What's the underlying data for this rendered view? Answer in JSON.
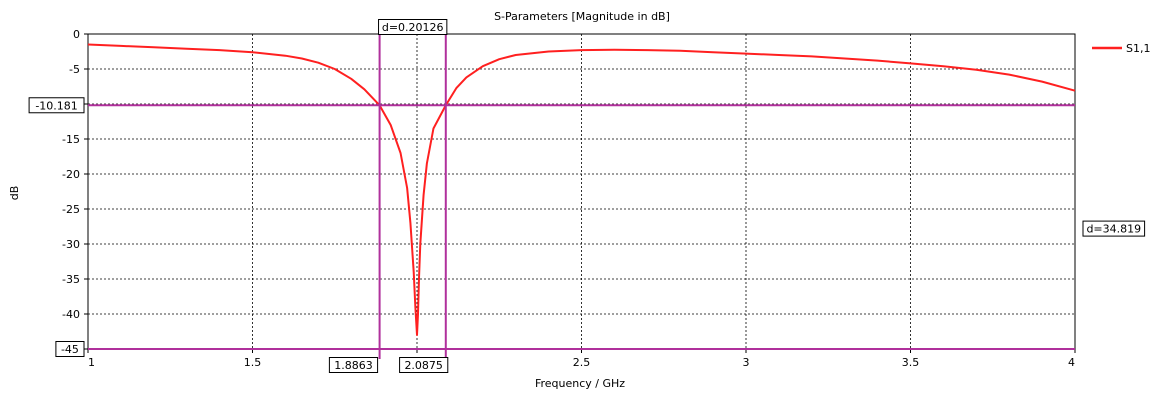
{
  "chart_data": {
    "type": "line",
    "title": "S-Parameters [Magnitude in dB]",
    "xlabel": "Frequency / GHz",
    "ylabel": "dB",
    "xlim": [
      1,
      4
    ],
    "ylim": [
      -45,
      0
    ],
    "xticks": [
      1,
      1.5,
      2,
      2.5,
      3,
      3.5,
      4
    ],
    "xtick_labels": [
      "1",
      "1.5",
      "2",
      "2.5",
      "3",
      "3.5",
      "4"
    ],
    "yticks": [
      0,
      -5,
      -10,
      -15,
      -20,
      -25,
      -30,
      -35,
      -40,
      -45
    ],
    "ytick_labels": [
      "0",
      "-5",
      "-10",
      "-15",
      "-20",
      "-25",
      "-30",
      "-35",
      "-40",
      "-45"
    ],
    "grid": true,
    "legend_position": "top-right",
    "series": [
      {
        "name": "S1,1",
        "color": "#ff2020",
        "x": [
          1.0,
          1.1,
          1.2,
          1.3,
          1.4,
          1.5,
          1.6,
          1.65,
          1.7,
          1.75,
          1.8,
          1.84,
          1.8863,
          1.92,
          1.95,
          1.97,
          1.98,
          1.99,
          1.995,
          2.0,
          2.003,
          2.006,
          2.01,
          2.02,
          2.03,
          2.05,
          2.0875,
          2.12,
          2.15,
          2.2,
          2.25,
          2.3,
          2.4,
          2.5,
          2.6,
          2.7,
          2.8,
          2.9,
          3.0,
          3.1,
          3.2,
          3.3,
          3.4,
          3.5,
          3.6,
          3.7,
          3.8,
          3.9,
          4.0
        ],
        "y": [
          -1.5,
          -1.7,
          -1.9,
          -2.1,
          -2.3,
          -2.6,
          -3.1,
          -3.5,
          -4.1,
          -5.0,
          -6.4,
          -7.9,
          -10.181,
          -13.0,
          -17.0,
          -22.0,
          -27.0,
          -34.0,
          -39.0,
          -43.0,
          -40.0,
          -35.0,
          -30.0,
          -23.0,
          -18.5,
          -13.5,
          -10.181,
          -7.7,
          -6.2,
          -4.6,
          -3.6,
          -3.0,
          -2.5,
          -2.3,
          -2.25,
          -2.3,
          -2.4,
          -2.6,
          -2.8,
          -3.0,
          -3.2,
          -3.5,
          -3.8,
          -4.2,
          -4.6,
          -5.1,
          -5.8,
          -6.8,
          -8.1
        ]
      }
    ],
    "markers": {
      "color": "#b0309c",
      "vertical": [
        {
          "x": 1.8863,
          "label": "1.8863"
        },
        {
          "x": 2.0875,
          "label": "2.0875"
        }
      ],
      "horizontal": [
        {
          "y": -10.181,
          "label": "-10.181"
        },
        {
          "y": -45,
          "label": "-45"
        }
      ],
      "x_delta_label": "d=0.20126",
      "y_delta_label": "d=34.819"
    }
  }
}
